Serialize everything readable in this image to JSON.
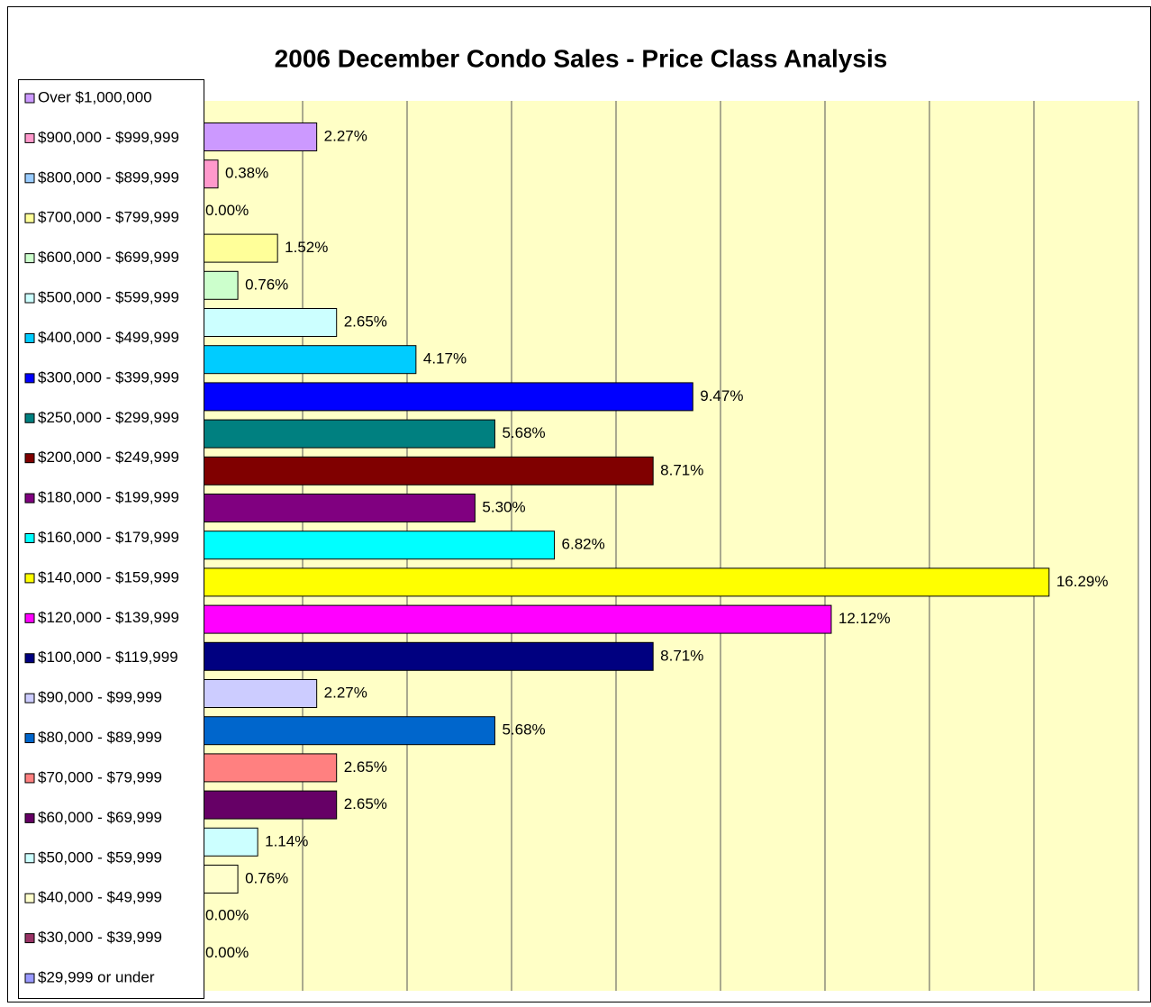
{
  "chart_data": {
    "type": "bar",
    "orientation": "horizontal",
    "title": "2006 December Condo Sales - Price Class Analysis",
    "categories": [
      "Over $1,000,000",
      "$900,000 - $999,999",
      "$800,000 - $899,999",
      "$700,000 - $799,999",
      "$600,000 - $699,999",
      "$500,000 - $599,999",
      "$400,000 - $499,999",
      "$300,000 - $399,999",
      "$250,000 - $299,999",
      "$200,000 - $249,999",
      "$180,000 - $199,999",
      "$160,000 - $179,999",
      "$140,000 - $159,999",
      "$120,000 - $139,999",
      "$100,000 - $119,999",
      "$90,000 - $99,999",
      "$80,000 - $89,999",
      "$70,000 - $79,999",
      "$60,000 - $69,999",
      "$50,000 - $59,999",
      "$40,000 - $49,999",
      "$30,000 - $39,999",
      "$29,999 or under"
    ],
    "values": [
      2.27,
      0.38,
      0,
      1.52,
      0.76,
      2.65,
      4.17,
      9.47,
      5.68,
      8.71,
      5.3,
      6.82,
      16.29,
      12.12,
      8.71,
      2.27,
      5.68,
      2.65,
      2.65,
      1.14,
      0.76,
      0,
      0
    ],
    "value_labels": [
      "2.27%",
      "0.38%",
      "0.00%",
      "1.52%",
      "0.76%",
      "2.65%",
      "4.17%",
      "9.47%",
      "5.68%",
      "8.71%",
      "5.30%",
      "6.82%",
      "16.29%",
      "12.12%",
      "8.71%",
      "2.27%",
      "5.68%",
      "2.65%",
      "2.65%",
      "1.14%",
      "0.76%",
      "0.00%",
      "0.00%"
    ],
    "colors": [
      "#CC99FF",
      "#FF99CC",
      "#99CCFF",
      "#FFFF99",
      "#CCFFCC",
      "#CCFFFF",
      "#00CCFF",
      "#0000FF",
      "#008080",
      "#800000",
      "#800080",
      "#00FFFF",
      "#FFFF00",
      "#FF00FF",
      "#000080",
      "#CCCCFF",
      "#0066CC",
      "#FF8080",
      "#660066",
      "#CCFFFF",
      "#FFFFCC",
      "#993366",
      "#9999FF"
    ],
    "xlim": [
      0,
      18
    ],
    "xticks": [
      0,
      2,
      4,
      6,
      8,
      10,
      12,
      14,
      16,
      18
    ],
    "grid": true,
    "plot_background": "#FFFFC6",
    "legend": "left"
  }
}
